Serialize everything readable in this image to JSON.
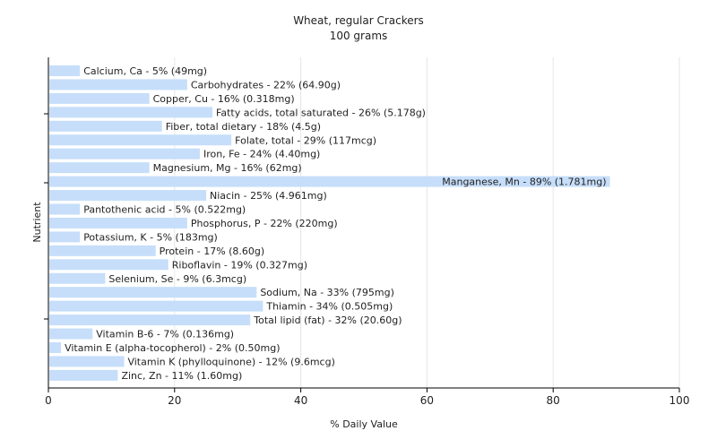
{
  "chart_data": {
    "type": "bar",
    "orientation": "horizontal",
    "title": "Wheat, regular Crackers",
    "subtitle": "100 grams",
    "xlabel": "% Daily Value",
    "ylabel": "Nutrient",
    "xlim": [
      0,
      100
    ],
    "xticks": [
      0,
      20,
      40,
      60,
      80,
      100
    ],
    "grid": true,
    "bar_color": "#c6defa",
    "bars": [
      {
        "name": "Calcium, Ca",
        "value": 5,
        "label": "Calcium, Ca - 5% (49mg)"
      },
      {
        "name": "Carbohydrates",
        "value": 22,
        "label": "Carbohydrates - 22% (64.90g)"
      },
      {
        "name": "Copper, Cu",
        "value": 16,
        "label": "Copper, Cu - 16% (0.318mg)"
      },
      {
        "name": "Fatty acids, total saturated",
        "value": 26,
        "label": "Fatty acids, total saturated - 26% (5.178g)"
      },
      {
        "name": "Fiber, total dietary",
        "value": 18,
        "label": "Fiber, total dietary - 18% (4.5g)"
      },
      {
        "name": "Folate, total",
        "value": 29,
        "label": "Folate, total - 29% (117mcg)"
      },
      {
        "name": "Iron, Fe",
        "value": 24,
        "label": "Iron, Fe - 24% (4.40mg)"
      },
      {
        "name": "Magnesium, Mg",
        "value": 16,
        "label": "Magnesium, Mg - 16% (62mg)"
      },
      {
        "name": "Manganese, Mn",
        "value": 89,
        "label": "Manganese, Mn - 89% (1.781mg)"
      },
      {
        "name": "Niacin",
        "value": 25,
        "label": "Niacin - 25% (4.961mg)"
      },
      {
        "name": "Pantothenic acid",
        "value": 5,
        "label": "Pantothenic acid - 5% (0.522mg)"
      },
      {
        "name": "Phosphorus, P",
        "value": 22,
        "label": "Phosphorus, P - 22% (220mg)"
      },
      {
        "name": "Potassium, K",
        "value": 5,
        "label": "Potassium, K - 5% (183mg)"
      },
      {
        "name": "Protein",
        "value": 17,
        "label": "Protein - 17% (8.60g)"
      },
      {
        "name": "Riboflavin",
        "value": 19,
        "label": "Riboflavin - 19% (0.327mg)"
      },
      {
        "name": "Selenium, Se",
        "value": 9,
        "label": "Selenium, Se - 9% (6.3mcg)"
      },
      {
        "name": "Sodium, Na",
        "value": 33,
        "label": "Sodium, Na - 33% (795mg)"
      },
      {
        "name": "Thiamin",
        "value": 34,
        "label": "Thiamin - 34% (0.505mg)"
      },
      {
        "name": "Total lipid (fat)",
        "value": 32,
        "label": "Total lipid (fat) - 32% (20.60g)"
      },
      {
        "name": "Vitamin B-6",
        "value": 7,
        "label": "Vitamin B-6 - 7% (0.136mg)"
      },
      {
        "name": "Vitamin E (alpha-tocopherol)",
        "value": 2,
        "label": "Vitamin E (alpha-tocopherol) - 2% (0.50mg)"
      },
      {
        "name": "Vitamin K (phylloquinone)",
        "value": 12,
        "label": "Vitamin K (phylloquinone) - 12% (9.6mcg)"
      },
      {
        "name": "Zinc, Zn",
        "value": 11,
        "label": "Zinc, Zn - 11% (1.60mg)"
      }
    ]
  }
}
